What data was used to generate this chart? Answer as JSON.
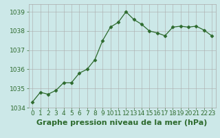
{
  "x": [
    0,
    1,
    2,
    3,
    4,
    5,
    6,
    7,
    8,
    9,
    10,
    11,
    12,
    13,
    14,
    15,
    16,
    17,
    18,
    19,
    20,
    21,
    22,
    23
  ],
  "y": [
    1034.3,
    1034.8,
    1034.7,
    1034.9,
    1035.3,
    1035.3,
    1035.8,
    1036.0,
    1036.5,
    1037.5,
    1038.2,
    1038.45,
    1039.0,
    1038.6,
    1038.35,
    1038.0,
    1037.9,
    1037.75,
    1038.2,
    1038.25,
    1038.2,
    1038.25,
    1038.05,
    1037.75
  ],
  "line_color": "#2d6a2d",
  "marker": "D",
  "marker_size": 2.5,
  "bg_color": "#cce8e8",
  "grid_color": "#aaaaaa",
  "xlabel": "Graphe pression niveau de la mer (hPa)",
  "ylabel": "",
  "ylim": [
    1034.0,
    1039.4
  ],
  "yticks": [
    1034,
    1035,
    1036,
    1037,
    1038,
    1039
  ],
  "xticks": [
    0,
    1,
    2,
    3,
    4,
    5,
    6,
    7,
    8,
    9,
    10,
    11,
    12,
    13,
    14,
    15,
    16,
    17,
    18,
    19,
    20,
    21,
    22,
    23
  ],
  "xlabel_fontsize": 8,
  "tick_fontsize": 6.5,
  "tick_color": "#2d6a2d",
  "xlabel_color": "#2d6a2d"
}
